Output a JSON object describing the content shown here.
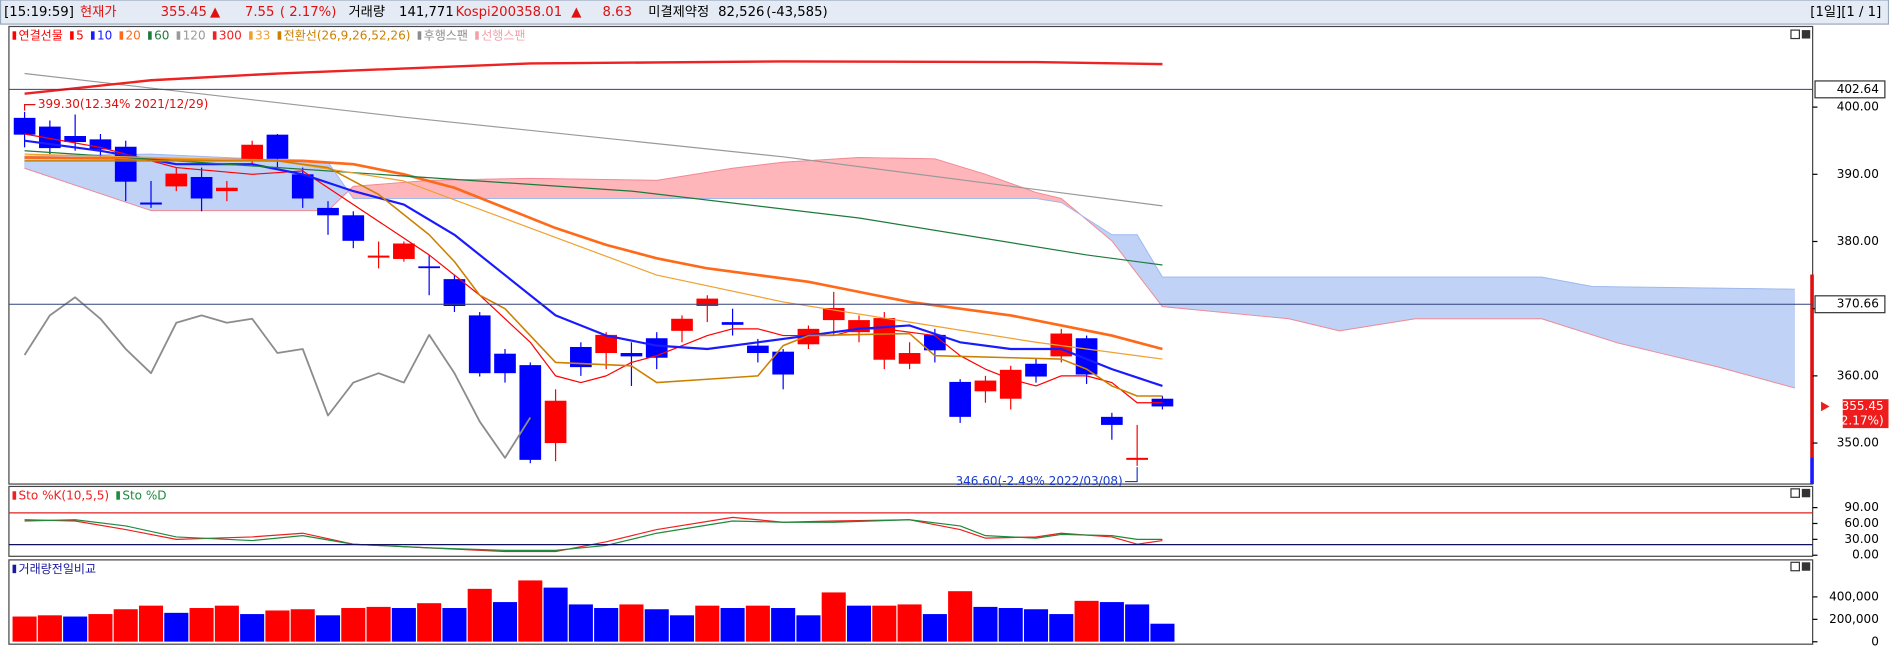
{
  "header": {
    "time": "[15:19:59]",
    "price_label": "현재가",
    "price": 355.45,
    "price_arrow": "▲",
    "change": 7.55,
    "change_pct": "( 2.17%)",
    "volume_label": "거래량",
    "volume": "141,771",
    "index_label": "Kospi200",
    "index": 358.01,
    "index_arrow": "▲",
    "index_change": 8.63,
    "oi_label": "미결제약정",
    "oi": "82,526",
    "oi_change": "(-43,585)",
    "page": "[1일][1 / 1]"
  },
  "chart_data": [
    {
      "type": "candlestick",
      "ylim": [
        343.9,
        412
      ],
      "yticks": [
        {
          "value": 350,
          "label": "350.00"
        },
        {
          "value": 360,
          "label": "360.00"
        },
        {
          "value": 370,
          "label": "370.00"
        },
        {
          "value": 380,
          "label": "380.00"
        },
        {
          "value": 390,
          "label": "390.00"
        },
        {
          "value": 400,
          "label": "400.00"
        }
      ],
      "hlines": [
        402.64,
        370.66
      ],
      "hline_color": "#33427a",
      "current": {
        "value": 355.45,
        "change": "( 2.17%)",
        "color": "#ee1c1c"
      },
      "annotations": [
        {
          "text": "399.30(12.34% 2021/12/29)",
          "at": "high",
          "color": "#e01010"
        },
        {
          "text": "346.60(-2.49% 2022/03/08)",
          "at": "low",
          "color": "#1a3ccc"
        }
      ],
      "series": [
        {
          "name": "연결선물",
          "kind": "candle",
          "color": "#ff0000",
          "up_color": "#ff0000",
          "down_color": "#0000ff",
          "open": [
            398.4,
            397.1,
            395.7,
            395.2,
            394.1,
            385.8,
            388.2,
            389.6,
            387.5,
            392.1,
            395.9,
            390,
            385,
            383.9,
            377.6,
            377.4,
            376.3,
            374.4,
            369,
            363.3,
            361.6,
            350,
            364.3,
            363.4,
            363.4,
            365.6,
            366.7,
            370.4,
            368,
            364.5,
            363.6,
            364.7,
            368.3,
            366.5,
            362.4,
            361.8,
            366.1,
            359.1,
            357.7,
            356.6,
            361.8,
            362.9,
            365.6,
            353.9,
            347.5,
            356.6
          ],
          "high": [
            399.3,
            398,
            398.9,
            396,
            395,
            389,
            391,
            391,
            389,
            395,
            396,
            391,
            386,
            384.5,
            380,
            380,
            378,
            375,
            369.5,
            364,
            362,
            358,
            365,
            366.5,
            365,
            366.5,
            369,
            372,
            370,
            365.5,
            364,
            367.5,
            372.5,
            369,
            369.5,
            365,
            367,
            359.5,
            360,
            361.5,
            362.5,
            367,
            366,
            354.5,
            352.7,
            357
          ],
          "low": [
            394,
            393,
            393.5,
            392.5,
            386,
            385,
            387.5,
            384.5,
            386,
            391.5,
            391,
            385,
            381,
            379,
            376,
            377,
            372,
            369.5,
            359.9,
            359,
            347,
            347.3,
            360,
            361,
            358.5,
            361,
            365,
            368,
            366,
            362,
            358,
            364,
            366,
            365,
            361,
            361,
            362,
            353,
            356,
            355,
            359,
            362,
            358.8,
            350.5,
            346.6,
            355
          ],
          "close": [
            395.9,
            393.9,
            394.8,
            393.7,
            388.9,
            385.5,
            390.1,
            386.4,
            388,
            394.4,
            392.3,
            386.4,
            383.9,
            380.1,
            377.9,
            379.7,
            376.1,
            370.4,
            360.4,
            360.4,
            347.5,
            356.3,
            361.3,
            366.1,
            362.9,
            362.7,
            368.5,
            371.5,
            367.6,
            363.4,
            360.2,
            367,
            370.1,
            368.3,
            368.6,
            363.4,
            363.8,
            353.9,
            359.3,
            360.9,
            359.9,
            366.3,
            360.2,
            352.7,
            347.8,
            355.45
          ]
        },
        {
          "name": "5",
          "kind": "line",
          "color": "#ff0000",
          "width": 1,
          "x": [
            0,
            3,
            6,
            9,
            11,
            12,
            14,
            16,
            18,
            20,
            21,
            22,
            23,
            24,
            25,
            26,
            27,
            28,
            29,
            30,
            31,
            32,
            33,
            34,
            35,
            36,
            37,
            38,
            39,
            40,
            41,
            42,
            43,
            44,
            45
          ],
          "values": [
            396,
            394,
            391,
            390,
            390.5,
            388,
            383,
            378,
            372,
            365,
            360,
            359,
            360,
            362,
            363,
            364.5,
            366,
            367,
            367,
            366,
            366,
            366,
            367,
            367,
            366.5,
            366,
            363,
            361,
            359.5,
            358.5,
            360,
            360,
            359,
            356,
            356
          ]
        },
        {
          "name": "10",
          "kind": "line",
          "color": "#1a1aff",
          "width": 1.8,
          "x": [
            0,
            3,
            6,
            9,
            11,
            13,
            15,
            17,
            19,
            21,
            23,
            25,
            27,
            29,
            31,
            33,
            35,
            37,
            39,
            41,
            43,
            45
          ],
          "values": [
            395,
            393.5,
            391.5,
            391.5,
            390,
            387.5,
            385.5,
            381,
            375,
            369,
            366,
            364.5,
            364,
            365,
            366,
            367,
            367.5,
            365,
            364,
            364,
            361,
            358.5
          ]
        },
        {
          "name": "20",
          "kind": "line",
          "color": "#ff6a1a",
          "width": 2.2,
          "x": [
            0,
            5,
            11,
            13,
            15,
            17,
            19,
            21,
            23,
            25,
            27,
            29,
            31,
            33,
            35,
            37,
            39,
            41,
            43,
            45
          ],
          "values": [
            392.5,
            392.3,
            392,
            391.5,
            390,
            388,
            385,
            382,
            379.5,
            377.5,
            376,
            375,
            374,
            372.5,
            371,
            370,
            369,
            367.5,
            366,
            364
          ]
        },
        {
          "name": "60",
          "kind": "line",
          "color": "#1e7a3c",
          "width": 1,
          "x": [
            0,
            14,
            24,
            33,
            42,
            45
          ],
          "values": [
            393.5,
            390,
            387.5,
            383.5,
            378,
            376.5
          ]
        },
        {
          "name": "120",
          "kind": "line",
          "color": "#999999",
          "width": 1,
          "x": [
            0,
            15,
            30,
            45
          ],
          "values": [
            405,
            398.5,
            392.6,
            385.3
          ]
        },
        {
          "name": "300",
          "kind": "line",
          "color": "#ee2222",
          "width": 2,
          "x": [
            0,
            5,
            10,
            20,
            30,
            40,
            45
          ],
          "values": [
            402,
            404,
            405,
            406.5,
            406.8,
            406.7,
            406.4
          ]
        },
        {
          "name": "33",
          "kind": "line",
          "color": "#f0a030",
          "width": 1,
          "x": [
            0,
            10,
            15,
            20,
            25,
            30,
            35,
            40,
            45
          ],
          "values": [
            393,
            392,
            389,
            382,
            375,
            371,
            368,
            365,
            362.5
          ]
        },
        {
          "name": "전환선(26,9,26,52,26)",
          "kind": "line",
          "color": "#cc8000",
          "width": 1.3,
          "x": [
            0,
            10,
            12,
            14,
            16,
            17,
            18,
            19,
            20,
            21,
            24,
            25,
            27,
            29,
            30,
            31,
            35,
            36,
            41,
            42,
            43,
            44,
            45
          ],
          "values": [
            392,
            392,
            391,
            387,
            381,
            377,
            372,
            370,
            366,
            362,
            361.5,
            359,
            359.5,
            360,
            364.5,
            366,
            366.3,
            363,
            362.5,
            361,
            358.5,
            357,
            357
          ]
        },
        {
          "name": "후행스팬",
          "kind": "line",
          "color": "#8c8c8c",
          "width": 1.5,
          "x": [
            0,
            1,
            2,
            3,
            4,
            5,
            6,
            7,
            8,
            9,
            10,
            11,
            12,
            13,
            14,
            15,
            16,
            17,
            18,
            19,
            20
          ],
          "values": [
            363.1,
            369,
            371.7,
            368.5,
            364,
            360.4,
            367.9,
            369,
            367.9,
            368.5,
            363.4,
            364,
            354.1,
            359,
            360.4,
            359,
            366.1,
            360.4,
            353.2,
            347.8,
            353.8
          ]
        },
        {
          "name": "선행스팬",
          "kind": "cloud",
          "color": "#f4a0a8",
          "up_color": "#ffb6bb",
          "down_color": "#c0d2f6",
          "span1": {
            "color": "#f08a94",
            "x": [
              0,
              5,
              12,
              13,
              16,
              20,
              25,
              28,
              30,
              33,
              36,
              38,
              40,
              41,
              43,
              45,
              50,
              52,
              55,
              60,
              63,
              67,
              70
            ],
            "values": [
              390.9,
              384.6,
              384.6,
              388.2,
              389.1,
              389.4,
              389.1,
              390.9,
              391.8,
              392.5,
              392.3,
              390,
              387.3,
              386.4,
              380.1,
              370.3,
              368.5,
              366.7,
              368.5,
              368.5,
              364.9,
              361.3,
              358.2
            ]
          },
          "span2": {
            "color": "#9fb9ee",
            "x": [
              0,
              5,
              12,
              13,
              20,
              30,
              40,
              41,
              43,
              44,
              45,
              60,
              62,
              70
            ],
            "values": [
              392.7,
              393,
              391.8,
              386.4,
              386.4,
              386.4,
              386.4,
              385.8,
              381,
              381,
              374.7,
              374.7,
              373.3,
              372.9
            ]
          }
        }
      ]
    },
    {
      "type": "line",
      "ylim": [
        -2,
        130
      ],
      "yticks": [
        {
          "value": 0,
          "label": "0.00"
        },
        {
          "value": 30,
          "label": "30.00"
        },
        {
          "value": 60,
          "label": "60.00"
        },
        {
          "value": 90,
          "label": "90.00"
        }
      ],
      "hlines": [
        80,
        20
      ],
      "hline_colors": [
        "#e02020",
        "#101060"
      ],
      "series": [
        {
          "name": "Sto %K(10,5,5)",
          "kind": "line",
          "color": "#ee2020",
          "width": 1,
          "x": [
            0,
            2,
            4,
            6,
            9,
            11,
            13,
            16,
            19,
            21,
            23,
            25,
            28,
            30,
            32,
            35,
            37,
            38,
            40,
            41,
            43,
            44,
            45
          ],
          "values": [
            67,
            64.7,
            48.5,
            30,
            34.6,
            41.6,
            20.8,
            13.9,
            6.9,
            6.9,
            25.4,
            48.5,
            71.6,
            62.4,
            64.7,
            67,
            48.5,
            32.3,
            34.6,
            41.6,
            34.6,
            20.8,
            27.7
          ]
        },
        {
          "name": "Sto %D",
          "kind": "line",
          "color": "#1e8a3c",
          "width": 1,
          "x": [
            0,
            2,
            4,
            6,
            9,
            11,
            13,
            16,
            19,
            21,
            23,
            25,
            28,
            30,
            32,
            35,
            37,
            38,
            40,
            41,
            43,
            44,
            45
          ],
          "values": [
            64.7,
            67,
            55.4,
            34.6,
            27.7,
            37,
            20.8,
            13.9,
            9.2,
            9.2,
            18.5,
            41.6,
            64.7,
            62.4,
            62.4,
            67,
            55.4,
            37,
            32.3,
            39.3,
            37,
            30,
            30
          ]
        }
      ]
    },
    {
      "type": "bar",
      "ylim": [
        0,
        730000
      ],
      "yticks": [
        {
          "value": 0,
          "label": "0"
        },
        {
          "value": 200000,
          "label": "200,000"
        },
        {
          "value": 400000,
          "label": "400,000"
        }
      ],
      "series": [
        {
          "name": "거래량전일비교",
          "color": "#1a1aa0",
          "values": [
            225000,
            236000,
            225000,
            247000,
            290000,
            322000,
            258000,
            301000,
            322000,
            247000,
            279000,
            290000,
            236000,
            301000,
            311000,
            301000,
            344000,
            301000,
            472000,
            354000,
            547000,
            483000,
            333000,
            301000,
            333000,
            290000,
            236000,
            322000,
            301000,
            322000,
            301000,
            236000,
            440000,
            322000,
            322000,
            333000,
            247000,
            451000,
            311000,
            301000,
            290000,
            247000,
            365000,
            354000,
            333000,
            161000
          ],
          "colors": [
            "#ff0000",
            "#ff0000",
            "#0000ff",
            "#ff0000",
            "#ff0000",
            "#ff0000",
            "#0000ff",
            "#ff0000",
            "#ff0000",
            "#0000ff",
            "#ff0000",
            "#ff0000",
            "#0000ff",
            "#ff0000",
            "#ff0000",
            "#0000ff",
            "#ff0000",
            "#0000ff",
            "#ff0000",
            "#0000ff",
            "#ff0000",
            "#0000ff",
            "#0000ff",
            "#0000ff",
            "#ff0000",
            "#0000ff",
            "#0000ff",
            "#ff0000",
            "#0000ff",
            "#ff0000",
            "#0000ff",
            "#0000ff",
            "#ff0000",
            "#0000ff",
            "#ff0000",
            "#ff0000",
            "#0000ff",
            "#ff0000",
            "#0000ff",
            "#0000ff",
            "#0000ff",
            "#0000ff",
            "#ff0000",
            "#0000ff",
            "#0000ff",
            "#0000ff"
          ]
        }
      ]
    }
  ]
}
